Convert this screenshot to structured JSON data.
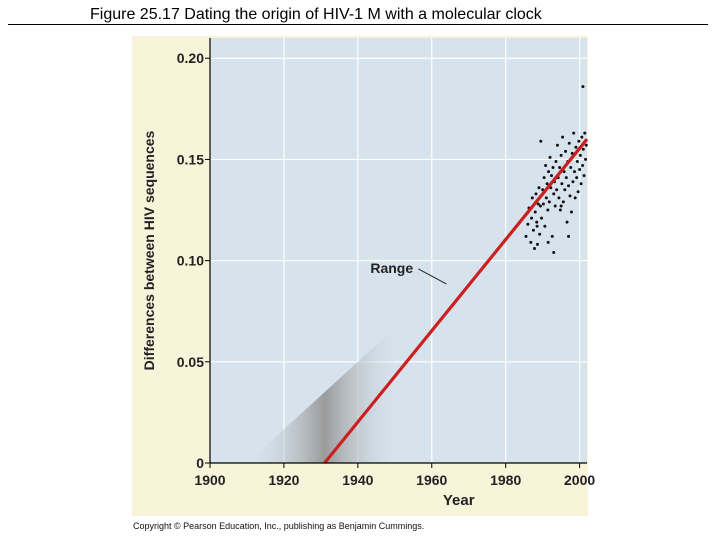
{
  "page": {
    "title": "Figure 25.17  Dating the origin of HIV-1 M with a molecular clock",
    "copyright": "Copyright © Pearson Education, Inc., publishing as Benjamin Cummings."
  },
  "colors": {
    "panel_bg": "#f7f4d9",
    "plot_bg": "#d6e2ec",
    "grid": "#ffffff",
    "regression_line": "#cc1f1f",
    "range_band": "#9a9a9a",
    "points": "#111111"
  },
  "chart_data": {
    "type": "scatter",
    "title": "",
    "xlabel": "Year",
    "ylabel": "Differences between HIV sequences",
    "xlim": [
      1900,
      2002
    ],
    "ylim": [
      0,
      0.21
    ],
    "xticks": [
      1900,
      1920,
      1940,
      1960,
      1980,
      2000
    ],
    "xtick_labels": [
      "1900",
      "1920",
      "1940",
      "1960",
      "1980",
      "2000"
    ],
    "yticks": [
      0,
      0.05,
      0.1,
      0.15,
      0.2
    ],
    "ytick_labels": [
      "0",
      "0.05",
      "0.10",
      "0.15",
      "0.20"
    ],
    "grid": true,
    "regression_line": {
      "x": [
        1931,
        2002
      ],
      "y": [
        0,
        0.16
      ]
    },
    "range_band": {
      "label": "Range",
      "apex": [
        1988,
        0.13
      ],
      "lower_edge_at_zero_x": 1910,
      "upper_edge_at_zero_x": 1952,
      "label_anchor": [
        1958,
        0.088
      ]
    },
    "points": [
      [
        1985.5,
        0.112
      ],
      [
        1986.0,
        0.118
      ],
      [
        1986.3,
        0.126
      ],
      [
        1986.8,
        0.109
      ],
      [
        1987.0,
        0.121
      ],
      [
        1987.2,
        0.131
      ],
      [
        1987.5,
        0.115
      ],
      [
        1987.8,
        0.106
      ],
      [
        1988.0,
        0.124
      ],
      [
        1988.2,
        0.133
      ],
      [
        1988.4,
        0.119
      ],
      [
        1988.6,
        0.108
      ],
      [
        1988.8,
        0.128
      ],
      [
        1989.0,
        0.136
      ],
      [
        1989.2,
        0.113
      ],
      [
        1989.4,
        0.127
      ],
      [
        1989.5,
        0.159
      ],
      [
        1989.7,
        0.121
      ],
      [
        1990.0,
        0.135
      ],
      [
        1990.2,
        0.128
      ],
      [
        1990.4,
        0.141
      ],
      [
        1990.6,
        0.117
      ],
      [
        1990.8,
        0.147
      ],
      [
        1991.0,
        0.131
      ],
      [
        1991.2,
        0.138
      ],
      [
        1991.4,
        0.125
      ],
      [
        1991.6,
        0.144
      ],
      [
        1991.8,
        0.129
      ],
      [
        1992.0,
        0.151
      ],
      [
        1992.2,
        0.136
      ],
      [
        1992.4,
        0.142
      ],
      [
        1992.6,
        0.112
      ],
      [
        1992.8,
        0.146
      ],
      [
        1993.0,
        0.133
      ],
      [
        1993.2,
        0.139
      ],
      [
        1993.4,
        0.127
      ],
      [
        1993.6,
        0.149
      ],
      [
        1993.8,
        0.135
      ],
      [
        1994.0,
        0.157
      ],
      [
        1994.2,
        0.141
      ],
      [
        1994.4,
        0.131
      ],
      [
        1994.6,
        0.146
      ],
      [
        1994.8,
        0.125
      ],
      [
        1995.0,
        0.152
      ],
      [
        1995.2,
        0.138
      ],
      [
        1995.4,
        0.161
      ],
      [
        1995.6,
        0.129
      ],
      [
        1995.8,
        0.144
      ],
      [
        1996.0,
        0.135
      ],
      [
        1996.2,
        0.154
      ],
      [
        1996.4,
        0.141
      ],
      [
        1996.6,
        0.119
      ],
      [
        1996.8,
        0.149
      ],
      [
        1997.0,
        0.137
      ],
      [
        1997.2,
        0.158
      ],
      [
        1997.4,
        0.132
      ],
      [
        1997.6,
        0.146
      ],
      [
        1997.8,
        0.124
      ],
      [
        1998.0,
        0.153
      ],
      [
        1998.2,
        0.139
      ],
      [
        1998.4,
        0.163
      ],
      [
        1998.6,
        0.144
      ],
      [
        1998.8,
        0.131
      ],
      [
        1999.0,
        0.156
      ],
      [
        1999.2,
        0.141
      ],
      [
        1999.4,
        0.149
      ],
      [
        1999.6,
        0.134
      ],
      [
        1999.8,
        0.159
      ],
      [
        2000.0,
        0.145
      ],
      [
        2000.2,
        0.152
      ],
      [
        2000.4,
        0.138
      ],
      [
        2000.6,
        0.161
      ],
      [
        2000.8,
        0.147
      ],
      [
        2001.0,
        0.155
      ],
      [
        2001.2,
        0.142
      ],
      [
        2001.4,
        0.163
      ],
      [
        2001.6,
        0.15
      ],
      [
        2001.8,
        0.157
      ],
      [
        2000.9,
        0.186
      ],
      [
        1993.0,
        0.104
      ],
      [
        1991.5,
        0.109
      ],
      [
        1997.0,
        0.112
      ],
      [
        1995.0,
        0.127
      ],
      [
        1988.5,
        0.117
      ]
    ]
  }
}
